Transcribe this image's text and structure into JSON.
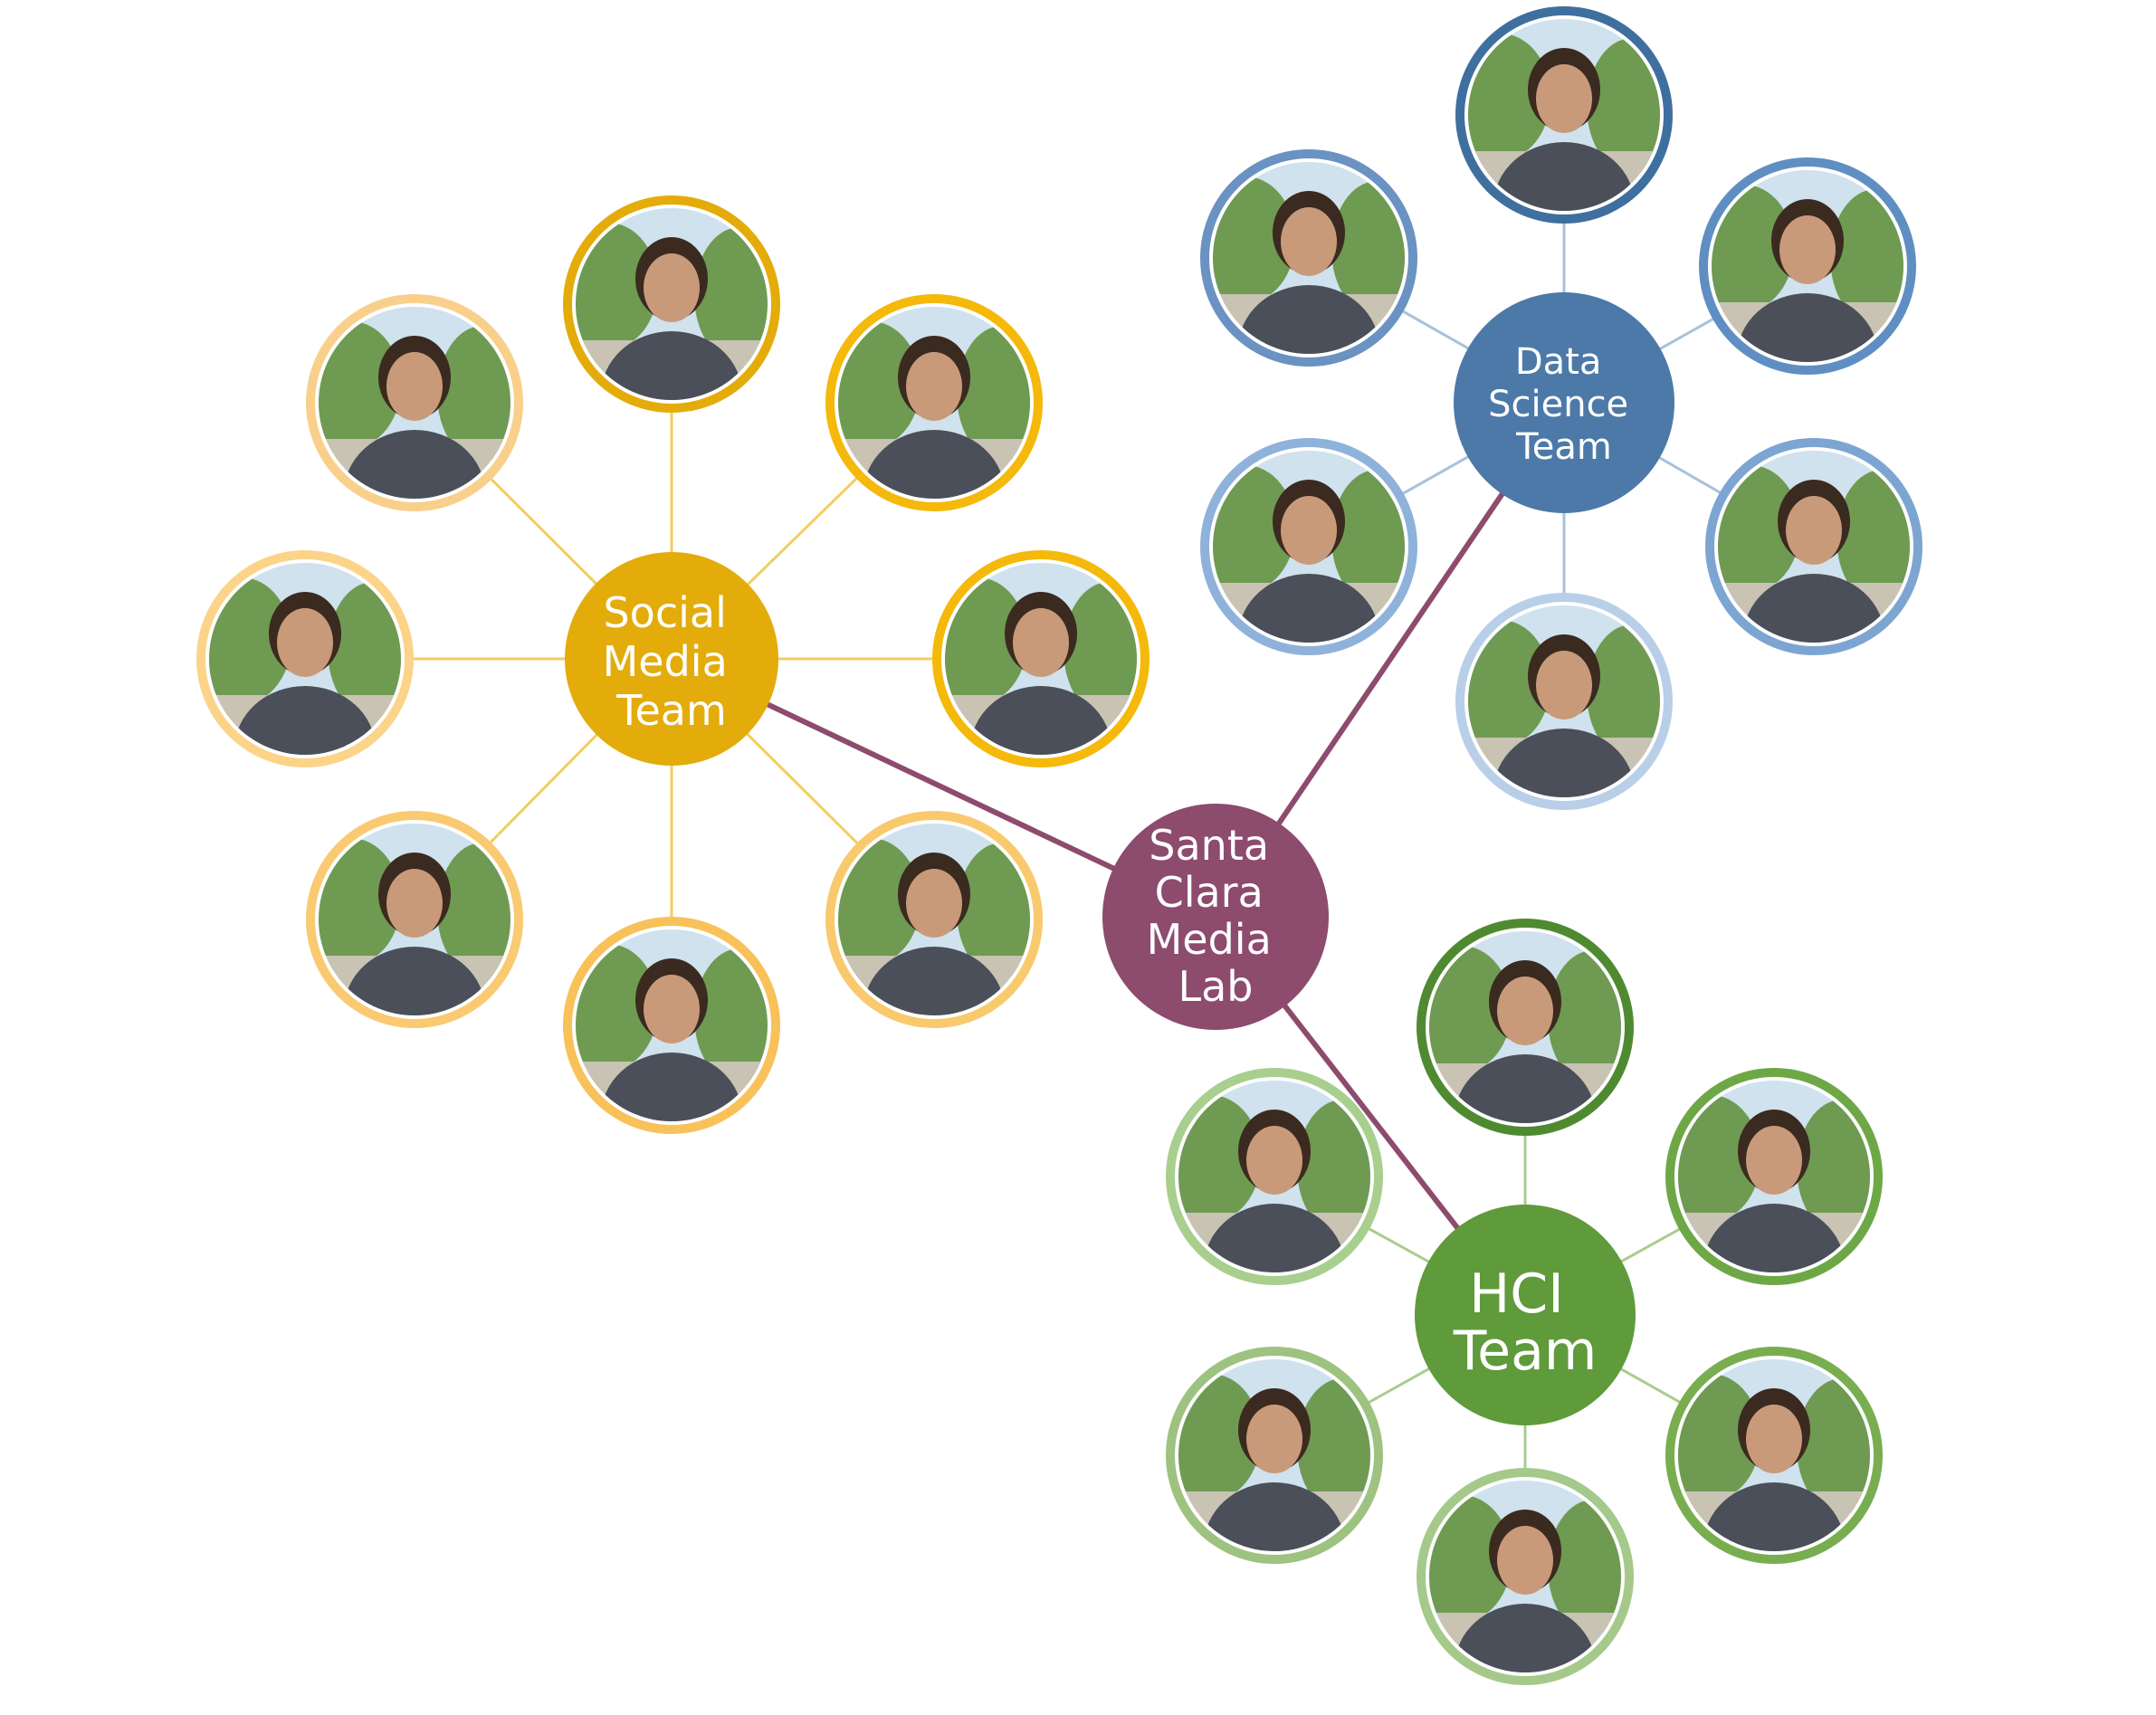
{
  "hub": {
    "lines": [
      "Santa",
      "Clara",
      "Media",
      "Lab"
    ],
    "color": "#8d4b6e"
  },
  "teams": [
    {
      "id": "social-media",
      "lines": [
        "Social",
        "Media",
        "Team"
      ],
      "color": "#e3ac0b",
      "link_color": "#f2ce5d",
      "member_ring_colors": [
        "#f9d08b",
        "#e3ac0b",
        "#f4b90a",
        "#f4b90a",
        "#f9c96e",
        "#f9c15a",
        "#f9ca72",
        "#fbd48a"
      ]
    },
    {
      "id": "data-science",
      "lines": [
        "Data",
        "Science",
        "Team"
      ],
      "color": "#4c79a8",
      "link_color": "#a8c0dc",
      "member_ring_colors": [
        "#3f6f9e",
        "#5f8fc2",
        "#7da5d1",
        "#b9cfe8",
        "#8fb2da",
        "#6a92c2"
      ]
    },
    {
      "id": "hci",
      "lines": [
        "HCI",
        "Team"
      ],
      "color": "#5f9a3b",
      "link_color": "#a9cc8e",
      "member_ring_colors": [
        "#4f8a31",
        "#6ea846",
        "#79ae50",
        "#a5c98a",
        "#9ec27f",
        "#a8cf8e"
      ]
    }
  ],
  "photo_palette": {
    "sky": "#cfe2ee",
    "foliage": "#6f9a52",
    "ground": "#c9c3b4",
    "skin": "#c99a7a",
    "hair": "#3b2a20",
    "shirt": "#4a4f59"
  }
}
